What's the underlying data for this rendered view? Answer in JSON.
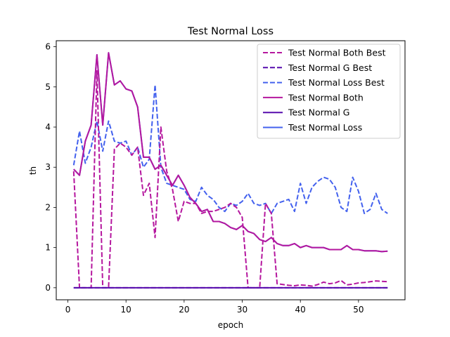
{
  "chart_data": {
    "type": "line",
    "title": "Test Normal Loss",
    "xlabel": "epoch",
    "ylabel": "th",
    "xlim": [
      -2,
      58
    ],
    "ylim": [
      -0.3,
      6.15
    ],
    "xticks": [
      "0",
      "10",
      "20",
      "30",
      "40",
      "50"
    ],
    "xtick_values": [
      0,
      10,
      20,
      30,
      40,
      50
    ],
    "yticks": [
      "0",
      "1",
      "2",
      "3",
      "4",
      "5",
      "6"
    ],
    "ytick_values": [
      0,
      1,
      2,
      3,
      4,
      5,
      6
    ],
    "grid": false,
    "legend_position": "top-right",
    "x": [
      1,
      2,
      3,
      4,
      5,
      6,
      7,
      8,
      9,
      10,
      11,
      12,
      13,
      14,
      15,
      16,
      17,
      18,
      19,
      20,
      21,
      22,
      23,
      24,
      25,
      26,
      27,
      28,
      29,
      30,
      31,
      32,
      33,
      34,
      35,
      36,
      37,
      38,
      39,
      40,
      41,
      42,
      43,
      44,
      45,
      46,
      47,
      48,
      49,
      50,
      51,
      52,
      53,
      54,
      55
    ],
    "series": [
      {
        "name": "Test Normal Both Best",
        "color": "#b5179e",
        "dashed": true,
        "values": [
          2.9,
          0,
          0,
          0,
          5.4,
          0,
          0,
          3.45,
          3.6,
          3.5,
          3.3,
          3.5,
          2.3,
          2.6,
          1.25,
          4.0,
          2.9,
          2.45,
          1.65,
          2.15,
          2.1,
          2.1,
          1.85,
          1.9,
          1.9,
          1.95,
          2.0,
          2.1,
          2.0,
          1.75,
          0.0,
          0.0,
          0.0,
          2.1,
          1.85,
          0.1,
          0.08,
          0.06,
          0.05,
          0.07,
          0.06,
          0.04,
          0.08,
          0.14,
          0.1,
          0.12,
          0.18,
          0.07,
          0.09,
          0.12,
          0.13,
          0.15,
          0.17,
          0.16,
          0.15
        ]
      },
      {
        "name": "Test Normal G Best",
        "color": "#560bad",
        "dashed": true,
        "values": [
          0,
          0,
          0,
          0,
          0,
          0,
          0,
          0,
          0,
          0,
          0,
          0,
          0,
          0,
          0,
          0,
          0,
          0,
          0,
          0,
          0,
          0,
          0,
          0,
          0,
          0,
          0,
          0,
          0,
          0,
          0,
          0,
          0,
          0,
          0,
          0,
          0,
          0,
          0,
          0,
          0,
          0,
          0,
          0,
          0,
          0,
          0,
          0,
          0,
          0,
          0,
          0,
          0,
          0,
          0
        ]
      },
      {
        "name": "Test Normal Loss Best",
        "color": "#4361ee",
        "dashed": true,
        "values": [
          3.05,
          3.9,
          3.1,
          3.5,
          4.15,
          3.4,
          4.15,
          3.65,
          3.6,
          3.65,
          3.3,
          3.5,
          3.0,
          3.2,
          5.05,
          3.0,
          2.6,
          2.55,
          2.5,
          2.45,
          2.2,
          2.15,
          2.5,
          2.3,
          2.2,
          2.0,
          1.9,
          2.1,
          2.05,
          2.15,
          2.35,
          2.1,
          2.05,
          2.1,
          1.85,
          2.1,
          2.15,
          2.2,
          1.9,
          2.6,
          2.1,
          2.5,
          2.65,
          2.75,
          2.7,
          2.5,
          2.0,
          1.9,
          2.75,
          2.4,
          1.85,
          1.95,
          2.35,
          1.95,
          1.85
        ]
      },
      {
        "name": "Test Normal Both",
        "color": "#b5179e",
        "dashed": false,
        "values": [
          2.95,
          2.8,
          3.65,
          4.05,
          5.8,
          4.05,
          5.85,
          5.05,
          5.15,
          4.95,
          4.9,
          4.5,
          3.25,
          3.25,
          2.95,
          3.05,
          2.8,
          2.55,
          2.8,
          2.55,
          2.25,
          2.1,
          1.9,
          1.95,
          1.65,
          1.65,
          1.6,
          1.5,
          1.45,
          1.55,
          1.4,
          1.35,
          1.2,
          1.15,
          1.25,
          1.1,
          1.05,
          1.05,
          1.1,
          1.0,
          1.05,
          1.0,
          1.0,
          1.0,
          0.95,
          0.95,
          0.95,
          1.05,
          0.95,
          0.95,
          0.92,
          0.92,
          0.92,
          0.9,
          0.91
        ]
      },
      {
        "name": "Test Normal G",
        "color": "#560bad",
        "dashed": false,
        "values": [
          0,
          0,
          0,
          0,
          0,
          0,
          0,
          0,
          0,
          0,
          0,
          0,
          0,
          0,
          0,
          0,
          0,
          0,
          0,
          0,
          0,
          0,
          0,
          0,
          0,
          0,
          0,
          0,
          0,
          0,
          0,
          0,
          0,
          0,
          0,
          0,
          0,
          0,
          0,
          0,
          0,
          0,
          0,
          0,
          0,
          0,
          0,
          0,
          0,
          0,
          0,
          0,
          0,
          0,
          0
        ]
      },
      {
        "name": "Test Normal Loss",
        "color": "#4361ee",
        "dashed": false,
        "values": [
          2.95,
          2.8,
          3.65,
          4.05,
          5.8,
          4.05,
          5.85,
          5.05,
          5.15,
          4.95,
          4.9,
          4.5,
          3.25,
          3.25,
          2.95,
          3.05,
          2.8,
          2.55,
          2.8,
          2.55,
          2.25,
          2.1,
          1.9,
          1.95,
          1.65,
          1.65,
          1.6,
          1.5,
          1.45,
          1.55,
          1.4,
          1.35,
          1.2,
          1.15,
          1.25,
          1.1,
          1.05,
          1.05,
          1.1,
          1.0,
          1.05,
          1.0,
          1.0,
          1.0,
          0.95,
          0.95,
          0.95,
          1.05,
          0.95,
          0.95,
          0.92,
          0.92,
          0.92,
          0.9,
          0.91
        ]
      }
    ]
  }
}
